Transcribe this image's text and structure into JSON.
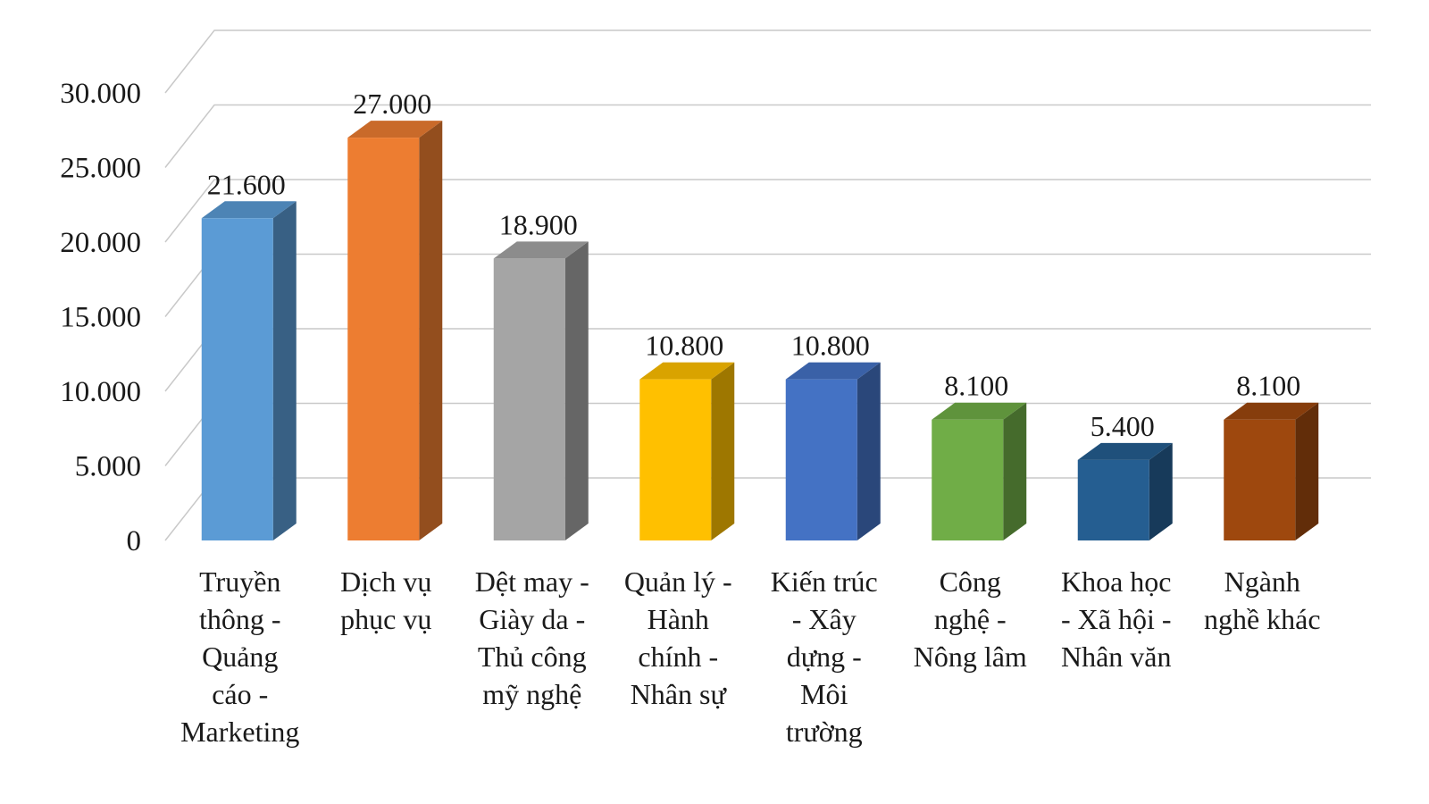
{
  "chart_data": {
    "type": "bar",
    "categories": [
      [
        "Truyền",
        "thông -",
        "Quảng",
        "cáo -",
        "Marketing"
      ],
      [
        "Dịch vụ",
        "phục vụ"
      ],
      [
        "Dệt may -",
        "Giày da -",
        "Thủ công",
        "mỹ nghệ"
      ],
      [
        "Quản lý -",
        "Hành",
        "chính -",
        "Nhân sự"
      ],
      [
        "Kiến trúc",
        "- Xây",
        "dựng -",
        "Môi",
        "trường"
      ],
      [
        "Công",
        "nghệ -",
        "Nông lâm"
      ],
      [
        "Khoa học",
        "- Xã hội -",
        "Nhân văn"
      ],
      [
        "Ngành",
        "nghề khác"
      ]
    ],
    "values": [
      21600,
      27000,
      18900,
      10800,
      10800,
      8100,
      5400,
      8100
    ],
    "value_labels": [
      "21.600",
      "27.000",
      "18.900",
      "10.800",
      "10.800",
      "8.100",
      "5.400",
      "8.100"
    ],
    "ylim": [
      0,
      30000
    ],
    "yticks": [
      0,
      5000,
      10000,
      15000,
      20000,
      25000,
      30000
    ],
    "ytick_labels": [
      "0",
      "5.000",
      "10.000",
      "15.000",
      "20.000",
      "25.000",
      "30.000"
    ],
    "colors": [
      "#5b9bd5",
      "#ed7d31",
      "#a5a5a5",
      "#ffc000",
      "#4472c4",
      "#70ad47",
      "#255e91",
      "#9e480e"
    ],
    "grid": true,
    "style": "3d-column",
    "legend": "none"
  }
}
